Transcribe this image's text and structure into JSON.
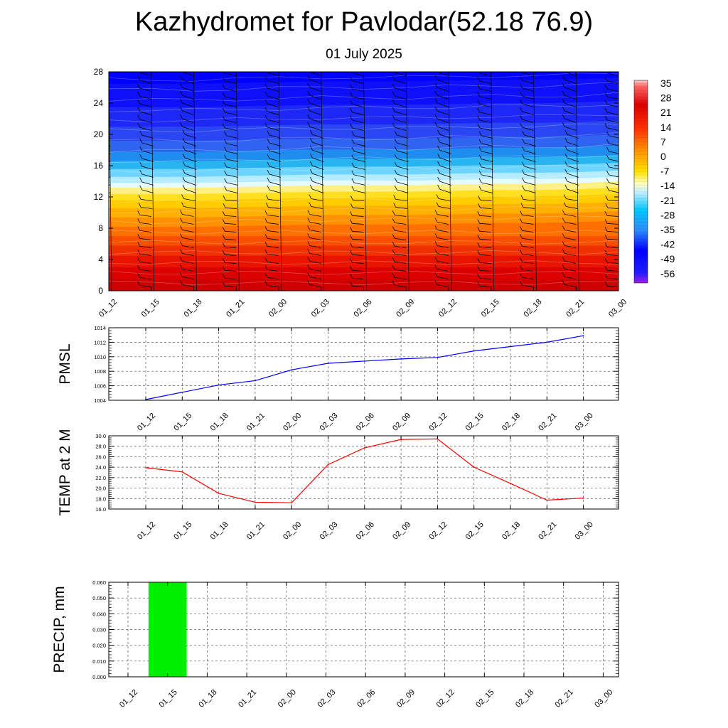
{
  "title": "Kazhydromet for Pavlodar(52.18 76.9)",
  "subtitle": "01 July 2025",
  "colors": {
    "pmsl_line": "#0000ff",
    "temp_line": "#ff0000",
    "precip_bar": "#00ee00",
    "barbs": "#000000"
  },
  "chart_data": [
    {
      "type": "heatmap",
      "x_categories": [
        "01_12",
        "01_15",
        "01_18",
        "01_21",
        "02_00",
        "02_03",
        "02_06",
        "02_09",
        "02_12",
        "02_15",
        "02_18",
        "02_21",
        "03_00"
      ],
      "ylim": [
        0,
        28
      ],
      "y_ticks": [
        "0",
        "4",
        "8",
        "12",
        "16",
        "20",
        "24",
        "28"
      ],
      "freezing_level": [
        13.0,
        13.0,
        13.0,
        13.1,
        13.2,
        13.3,
        13.3,
        13.3,
        13.4,
        13.5,
        13.5,
        13.6,
        13.8
      ],
      "colorbar_labels": [
        "35",
        "28",
        "21",
        "14",
        "7",
        "0",
        "-7",
        "-14",
        "-21",
        "-28",
        "-35",
        "-42",
        "-49",
        "-56"
      ],
      "grid": false
    },
    {
      "type": "line",
      "ylabel": "PMSL",
      "x_categories": [
        "01_12",
        "01_15",
        "01_18",
        "01_21",
        "02_00",
        "02_03",
        "02_06",
        "02_09",
        "02_12",
        "02_15",
        "02_18",
        "02_21",
        "03_00"
      ],
      "ylim": [
        1004,
        1014
      ],
      "y_ticks": [
        "1004",
        "1006",
        "1008",
        "1010",
        "1012",
        "1014"
      ],
      "values": [
        1004.1,
        1005.1,
        1006.1,
        1006.7,
        1008.2,
        1009.1,
        1009.4,
        1009.7,
        1009.9,
        1010.8,
        1011.4,
        1012.0,
        1012.9
      ],
      "grid": true
    },
    {
      "type": "line",
      "ylabel": "TEMP at 2 M",
      "x_categories": [
        "01_12",
        "01_15",
        "01_18",
        "01_21",
        "02_00",
        "02_03",
        "02_06",
        "02_09",
        "02_12",
        "02_15",
        "02_18",
        "02_21",
        "03_00"
      ],
      "ylim": [
        16,
        30
      ],
      "y_ticks": [
        "16.0",
        "18.0",
        "20.0",
        "22.0",
        "24.0",
        "26.0",
        "28.0",
        "30.0"
      ],
      "values": [
        23.9,
        23.1,
        19.0,
        17.3,
        17.2,
        24.5,
        27.7,
        29.3,
        29.4,
        24.0,
        20.9,
        17.7,
        18.1
      ],
      "grid": true
    },
    {
      "type": "bar",
      "ylabel": "PRECIP, mm",
      "x_categories": [
        "01_12",
        "01_15",
        "01_18",
        "01_21",
        "02_00",
        "02_03",
        "02_06",
        "02_09",
        "02_12",
        "02_15",
        "02_18",
        "02_21",
        "03_00"
      ],
      "ylim": [
        0,
        0.06
      ],
      "y_ticks": [
        "0.000",
        "0.010",
        "0.020",
        "0.030",
        "0.040",
        "0.050",
        "0.060"
      ],
      "values": [
        0,
        0.06,
        0,
        0,
        0,
        0,
        0,
        0,
        0,
        0,
        0,
        0,
        0
      ],
      "grid": true
    }
  ]
}
